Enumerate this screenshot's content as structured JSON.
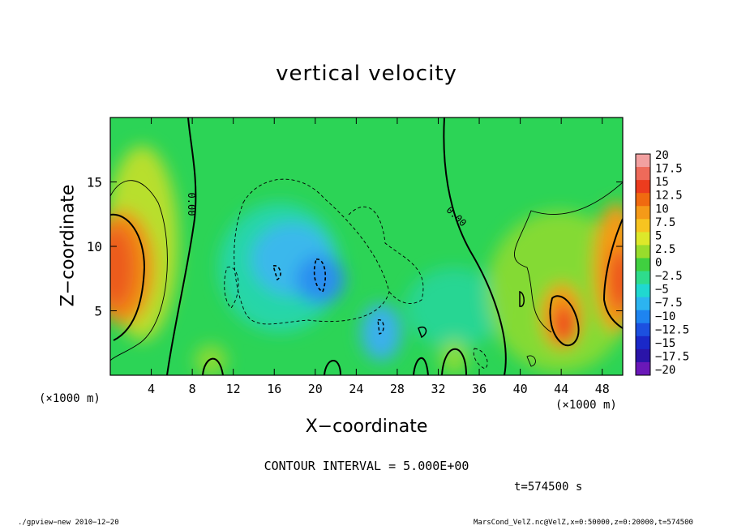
{
  "chart_data": {
    "type": "heatmap",
    "title": "vertical velocity",
    "xlabel": "X−coordinate",
    "ylabel": "Z−coordinate",
    "x_unit": "(×1000 m)",
    "xlim": [
      0,
      50
    ],
    "ylim": [
      0,
      20
    ],
    "x_ticks": [
      4,
      8,
      12,
      16,
      20,
      24,
      28,
      32,
      36,
      40,
      44,
      48
    ],
    "y_ticks": [
      5,
      10,
      15
    ],
    "colorbar": {
      "labels": [
        "20",
        "17.5",
        "15",
        "12.5",
        "10",
        "7.5",
        "5",
        "2.5",
        "0",
        "−2.5",
        "−5",
        "−7.5",
        "−10",
        "−12.5",
        "−15",
        "−17.5",
        "−20"
      ],
      "colors": [
        "#f2a0a0",
        "#ee6a5a",
        "#ec3c1e",
        "#f06a10",
        "#f59a18",
        "#f7c420",
        "#dde82a",
        "#99dc2c",
        "#40d040",
        "#2edc8c",
        "#20d8d0",
        "#2cb4f0",
        "#1e84f0",
        "#1c50e0",
        "#1a28c8",
        "#2a14a8",
        "#6a18b8"
      ]
    },
    "contour_labels": [
      "0.00",
      "0.00"
    ],
    "features": [
      {
        "kind": "updraft",
        "x": 1,
        "z": 8.5,
        "peak": 12
      },
      {
        "kind": "downdraft",
        "x": 18,
        "z": 8,
        "peak": -9
      },
      {
        "kind": "downdraft",
        "x": 26,
        "z": 4,
        "peak": -8
      },
      {
        "kind": "updraft",
        "x": 44,
        "z": 4,
        "peak": 12
      },
      {
        "kind": "updraft",
        "x": 50,
        "z": 8,
        "peak": 12
      }
    ]
  },
  "contour_interval": "CONTOUR INTERVAL = 5.000E+00",
  "time": "t=574500 s",
  "footer_left": "./gpview−new  2010−12−20",
  "footer_right": "MarsCond_VelZ.nc@VelZ,x=0:50000,z=0:20000,t=574500"
}
